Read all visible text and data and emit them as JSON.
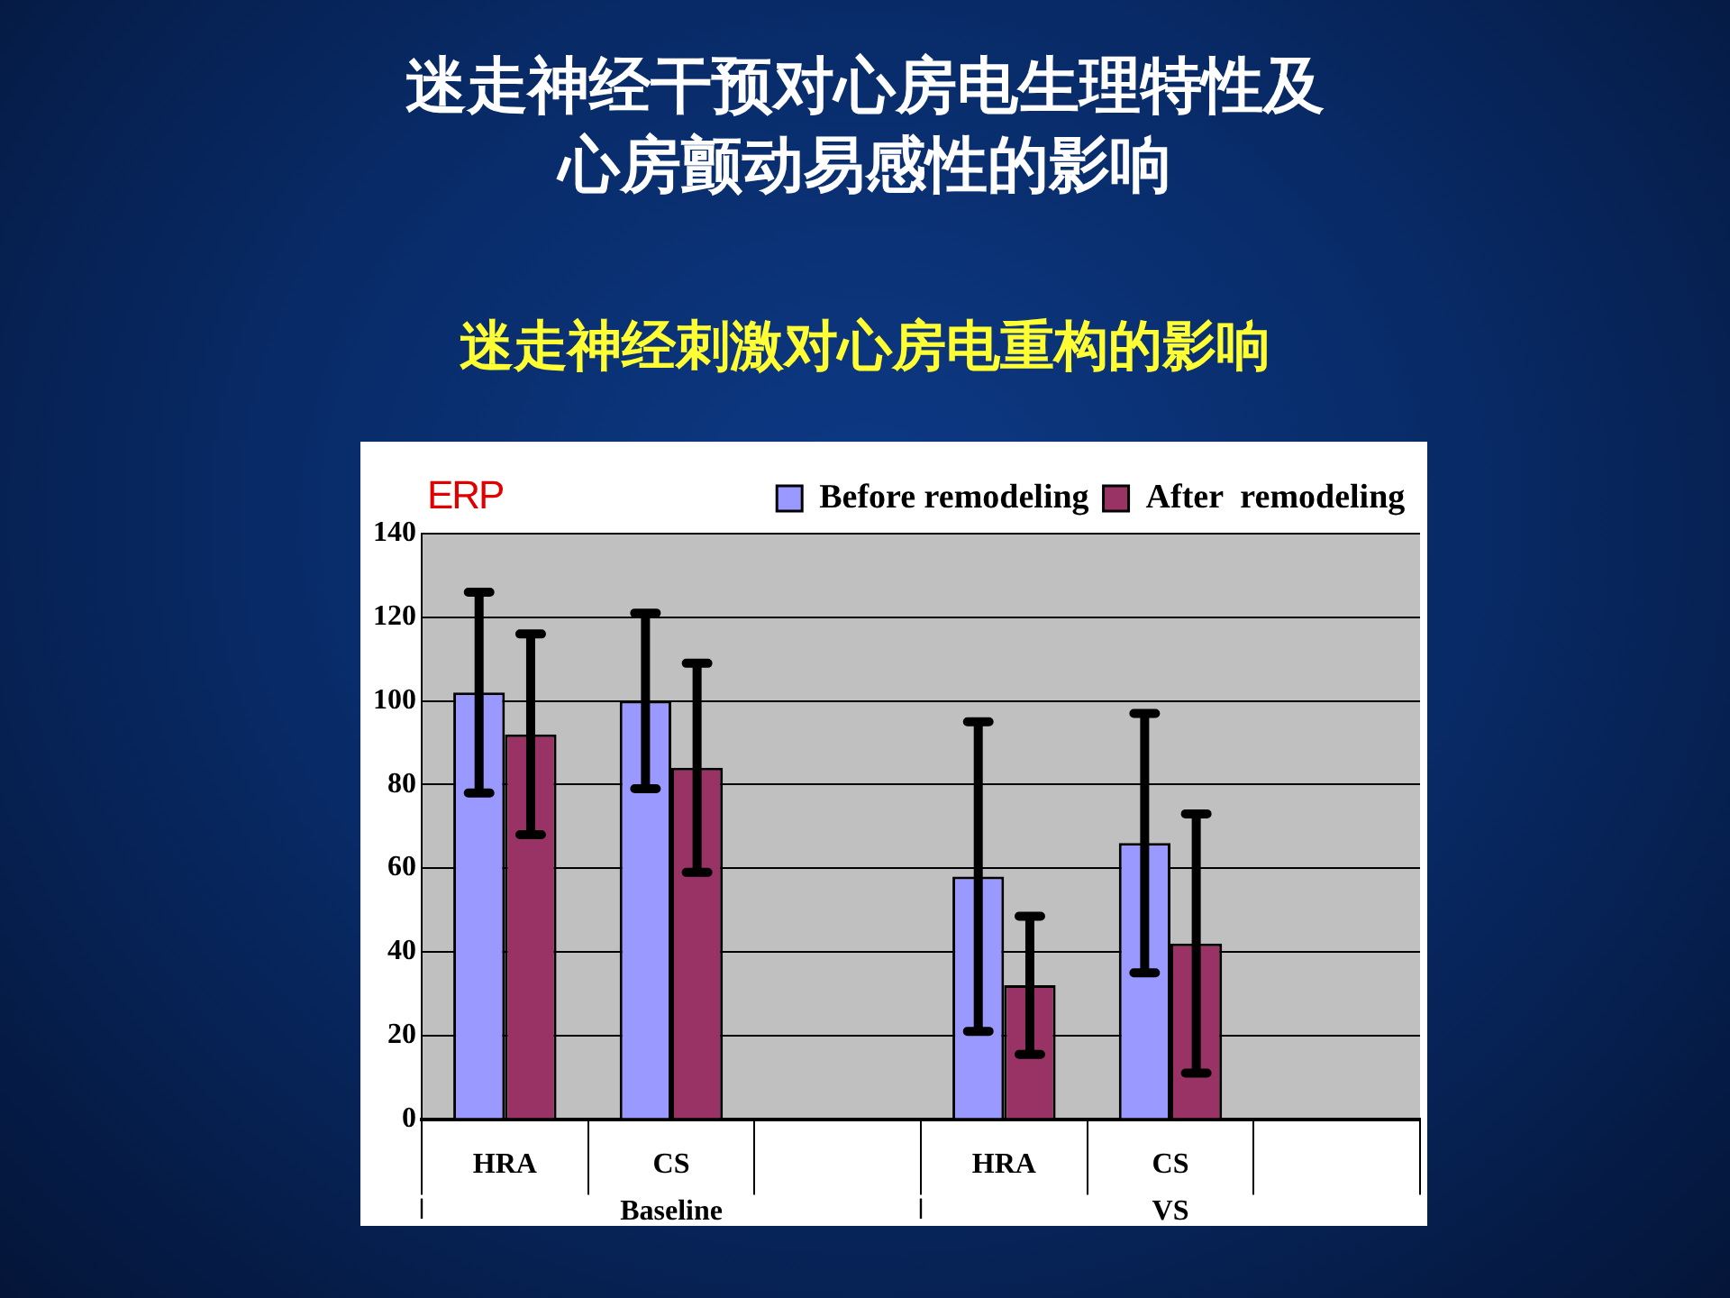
{
  "chart_data": {
    "type": "bar",
    "title": "迷走神经干预对心房电生理特性及心房颤动易感性的影响",
    "subtitle": "迷走神经刺激对心房电重构的影响",
    "ylabel": "ERP",
    "categories": [
      "HRA",
      "CS",
      null,
      "HRA",
      "CS",
      null
    ],
    "annotations": [
      "Baseline",
      "VS"
    ],
    "series": [
      {
        "name": "Before remodeling",
        "color": "#9999ff",
        "values": [
          102,
          100,
          null,
          58,
          66,
          null
        ],
        "errors": [
          24,
          21,
          null,
          37,
          31,
          null
        ]
      },
      {
        "name": "After  remodeling",
        "color": "#993366",
        "values": [
          92,
          84,
          null,
          32,
          42,
          null
        ],
        "errors": [
          24,
          25,
          null,
          16.5,
          31,
          null
        ]
      }
    ],
    "ylim": [
      0,
      140
    ],
    "yticks": [
      0,
      20,
      40,
      60,
      80,
      100,
      120,
      140
    ],
    "grid": "y",
    "legend": "top right"
  }
}
